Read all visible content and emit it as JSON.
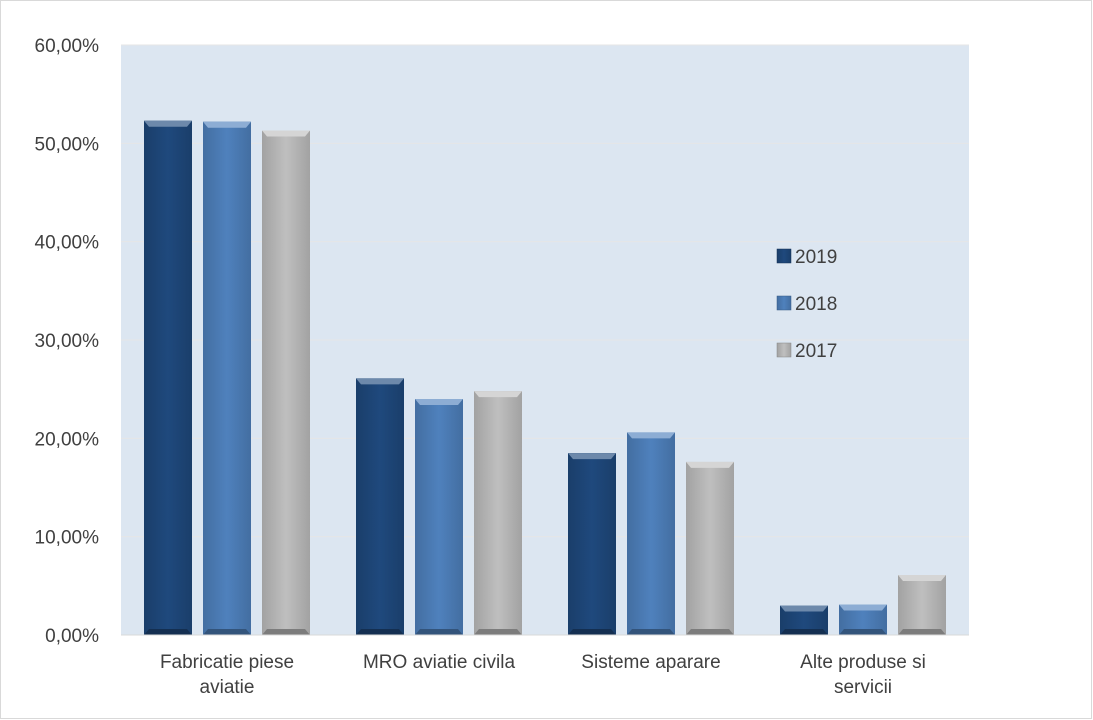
{
  "chart_data": {
    "type": "bar",
    "title": "",
    "xlabel": "",
    "ylabel": "",
    "categories": [
      [
        "Fabricatie piese",
        "aviatie"
      ],
      [
        "MRO aviatie civila"
      ],
      [
        "Sisteme aparare"
      ],
      [
        "Alte produse si",
        "servicii"
      ]
    ],
    "series": [
      {
        "name": "2019",
        "values": [
          52.3,
          26.1,
          18.5,
          3.0
        ],
        "color": "#1f497d"
      },
      {
        "name": "2018",
        "values": [
          52.2,
          24.0,
          20.6,
          3.1
        ],
        "color": "#4f81bd"
      },
      {
        "name": "2017",
        "values": [
          51.3,
          24.8,
          17.6,
          6.1
        ],
        "color": "#bfbfbf"
      }
    ],
    "ylim": [
      0,
      60
    ],
    "yticks": [
      "0,00%",
      "10,00%",
      "20,00%",
      "30,00%",
      "40,00%",
      "50,00%",
      "60,00%"
    ],
    "grid": true,
    "legend_position": "right",
    "plot_background": "#dce6f1"
  }
}
